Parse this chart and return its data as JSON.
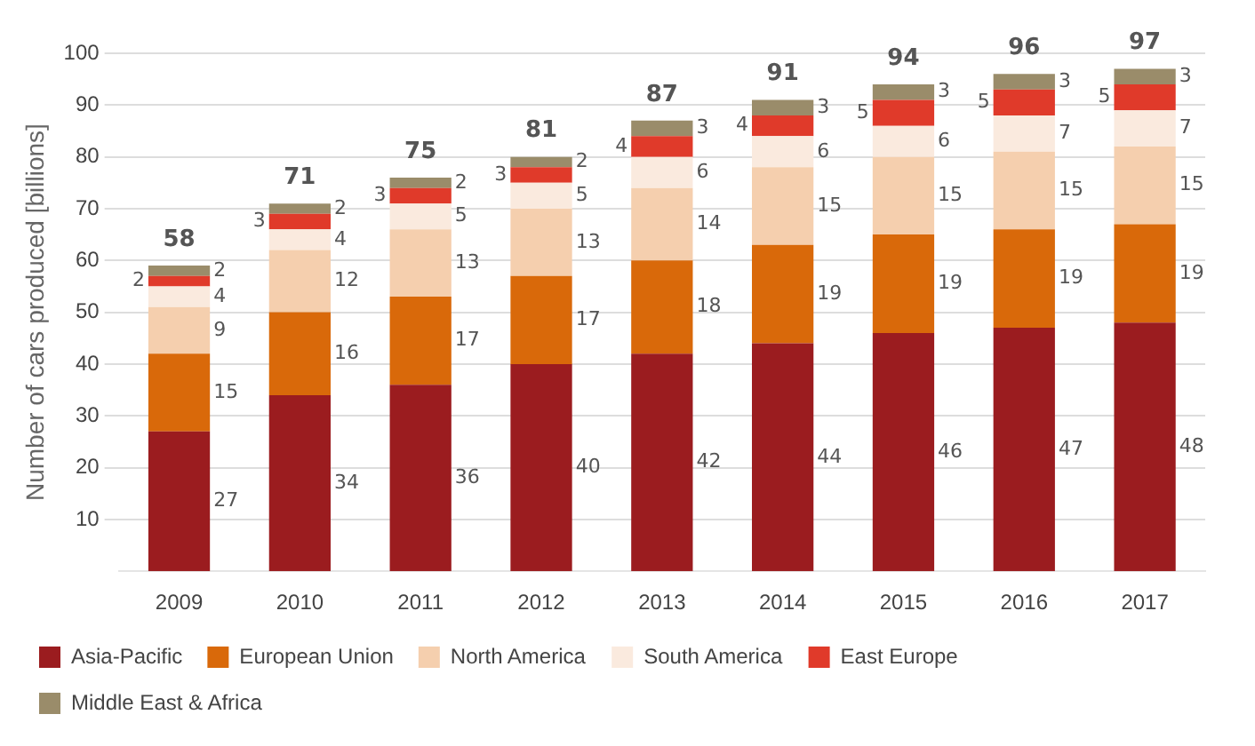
{
  "chart_data": {
    "type": "bar",
    "stacked": true,
    "ylabel": "Number of cars produced [billions]",
    "categories": [
      "2009",
      "2010",
      "2011",
      "2012",
      "2013",
      "2014",
      "2015",
      "2016",
      "2017"
    ],
    "series": [
      {
        "name": "Asia-Pacific",
        "color": "#9b1c1f",
        "values": [
          27,
          34,
          36,
          40,
          42,
          44,
          46,
          47,
          48
        ]
      },
      {
        "name": "European Union",
        "color": "#d9690a",
        "values": [
          15,
          16,
          17,
          17,
          18,
          19,
          19,
          19,
          19
        ]
      },
      {
        "name": "North America",
        "color": "#f5cfae",
        "values": [
          9,
          12,
          13,
          13,
          14,
          15,
          15,
          15,
          15
        ]
      },
      {
        "name": "South America",
        "color": "#faeade",
        "values": [
          4,
          4,
          5,
          5,
          6,
          6,
          6,
          7,
          7
        ]
      },
      {
        "name": "East Europe",
        "color": "#e03a2a",
        "values": [
          2,
          3,
          3,
          3,
          4,
          4,
          5,
          5,
          5
        ]
      },
      {
        "name": "Middle East & Africa",
        "color": "#9a8c6a",
        "values": [
          2,
          2,
          2,
          2,
          3,
          3,
          3,
          3,
          3
        ]
      }
    ],
    "totals": [
      "58",
      "71",
      "75",
      "81",
      "87",
      "91",
      "94",
      "96",
      "97"
    ],
    "data_labels": true,
    "ylim": [
      0,
      100
    ],
    "yticks": [
      10,
      20,
      30,
      40,
      50,
      60,
      70,
      80,
      90,
      100
    ],
    "grid": "y",
    "legend": "bottom"
  }
}
